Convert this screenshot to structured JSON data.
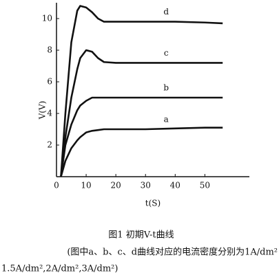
{
  "chart_data": {
    "type": "line",
    "x_label": "t(S)",
    "y_label": "V(V)",
    "xlim": [
      0,
      65
    ],
    "xticks": [
      0,
      10,
      20,
      30,
      40,
      50
    ],
    "ylim": [
      0,
      11
    ],
    "yticks": [
      2,
      4,
      6,
      8,
      10
    ],
    "x": [
      1.5,
      3,
      5,
      7,
      8,
      10,
      12,
      14,
      16,
      20,
      30,
      40,
      50,
      56
    ],
    "series": [
      {
        "name": "d",
        "color": "#111111",
        "values": [
          0,
          4,
          8.5,
          10.5,
          10.8,
          10.7,
          10.4,
          10,
          9.8,
          9.8,
          9.8,
          9.8,
          9.75,
          9.7
        ]
      },
      {
        "name": "c",
        "color": "#111111",
        "values": [
          0,
          2.5,
          5,
          6.8,
          7.5,
          8,
          7.9,
          7.5,
          7.25,
          7.2,
          7.2,
          7.2,
          7.2,
          7.2
        ]
      },
      {
        "name": "b",
        "color": "#111111",
        "values": [
          0,
          2,
          3.3,
          4.2,
          4.5,
          4.8,
          5,
          5,
          5,
          5,
          5,
          5,
          5,
          5
        ]
      },
      {
        "name": "a",
        "color": "#111111",
        "values": [
          0,
          1,
          1.8,
          2.3,
          2.5,
          2.8,
          2.9,
          2.95,
          3,
          3,
          3,
          3.05,
          3.1,
          3.1
        ]
      }
    ],
    "caption": "图1  初期V-t曲线",
    "note": [
      "(图中a、b、c、d曲线对应的电流密度分别为1A/dm²",
      "1.5A/dm²,2A/dm²,3A/dm²)"
    ]
  }
}
